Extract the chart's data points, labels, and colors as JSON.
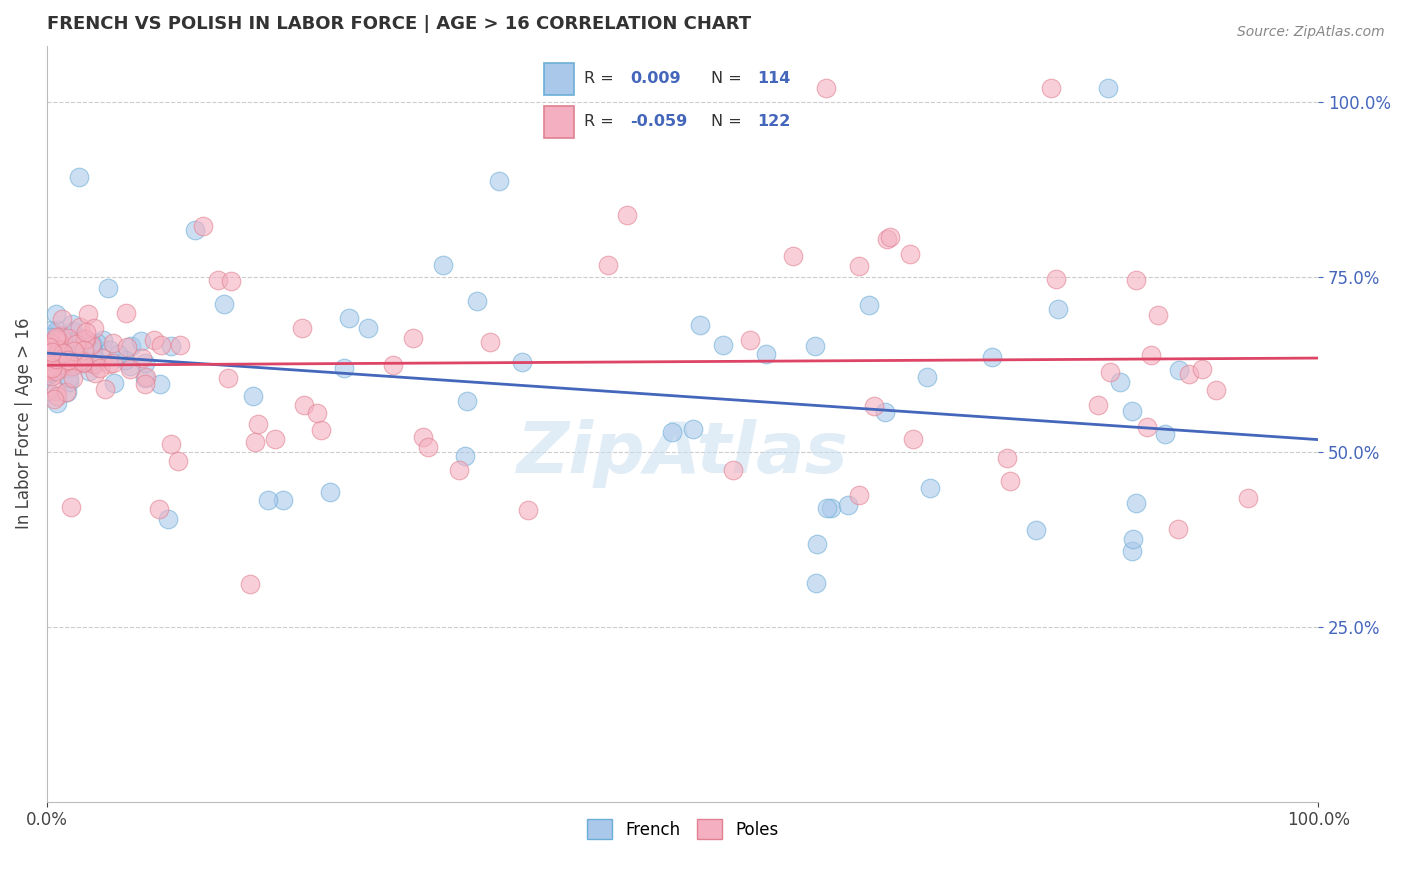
{
  "title": "FRENCH VS POLISH IN LABOR FORCE | AGE > 16 CORRELATION CHART",
  "source_text": "Source: ZipAtlas.com",
  "ylabel": "In Labor Force | Age > 16",
  "xlim": [
    0.0,
    1.0
  ],
  "ylim": [
    0.0,
    1.08
  ],
  "french_fill": "#aac8ea",
  "french_edge": "#6baed6",
  "poles_fill": "#f4b0c0",
  "poles_edge": "#e08090",
  "trend_french_color": "#4466bb",
  "trend_poles_color": "#dd4466",
  "R_french": 0.009,
  "N_french": 114,
  "R_poles": -0.059,
  "N_poles": 122,
  "legend_french_label": "French",
  "legend_poles_label": "Poles",
  "background_color": "#ffffff",
  "grid_color": "#cccccc",
  "title_color": "#333333",
  "tick_color": "#4466bb",
  "watermark_color": "#c8ddf0",
  "yticks": [
    0.25,
    0.5,
    0.75,
    1.0
  ],
  "ytick_labels": [
    "25.0%",
    "50.0%",
    "75.0%",
    "100.0%"
  ],
  "xtick_labels": [
    "0.0%",
    "100.0%"
  ],
  "legend_R_color": "#4466bb",
  "legend_N_color": "#4466bb"
}
